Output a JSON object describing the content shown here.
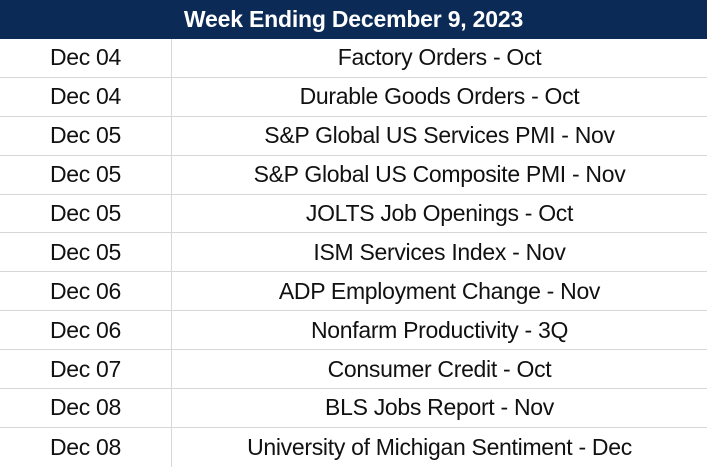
{
  "header": {
    "title": "Week Ending December 9, 2023"
  },
  "events": [
    {
      "date": "Dec 04",
      "event": "Factory Orders - Oct"
    },
    {
      "date": "Dec 04",
      "event": "Durable Goods Orders - Oct"
    },
    {
      "date": "Dec 05",
      "event": "S&P Global US Services PMI - Nov"
    },
    {
      "date": "Dec 05",
      "event": "S&P Global US Composite PMI - Nov"
    },
    {
      "date": "Dec 05",
      "event": "JOLTS Job Openings - Oct"
    },
    {
      "date": "Dec 05",
      "event": "ISM Services Index - Nov"
    },
    {
      "date": "Dec 06",
      "event": "ADP Employment Change - Nov"
    },
    {
      "date": "Dec 06",
      "event": "Nonfarm Productivity - 3Q"
    },
    {
      "date": "Dec 07",
      "event": "Consumer Credit - Oct"
    },
    {
      "date": "Dec 08",
      "event": "BLS Jobs Report - Nov"
    },
    {
      "date": "Dec 08",
      "event": "University of Michigan Sentiment - Dec"
    }
  ],
  "colors": {
    "header_background": "#0b2a56",
    "header_text": "#ffffff",
    "grid_line": "#d7d7d7",
    "text": "#111111"
  }
}
